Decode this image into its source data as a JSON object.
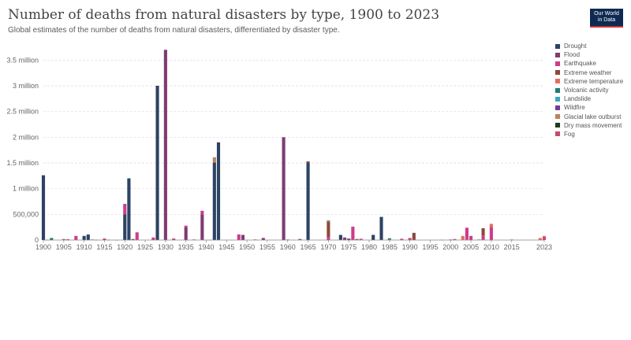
{
  "header": {
    "title": "Number of deaths from natural disasters by type, 1900 to 2023",
    "subtitle": "Global estimates of the number of deaths from natural disasters, differentiated by disaster type.",
    "logo_line1": "Our World",
    "logo_line2": "in Data"
  },
  "chart_data": {
    "type": "bar",
    "stacked": true,
    "xlim": [
      1900,
      2023
    ],
    "ylim": [
      0,
      3750000
    ],
    "yticks": [
      0,
      500000,
      1000000,
      1500000,
      2000000,
      2500000,
      3000000,
      3500000
    ],
    "ytick_labels": [
      "0",
      "500,000",
      "1 million",
      "1.5 million",
      "2 million",
      "2.5 million",
      "3 million",
      "3.5 million"
    ],
    "xticks": [
      1900,
      1905,
      1910,
      1915,
      1920,
      1925,
      1930,
      1935,
      1940,
      1945,
      1950,
      1955,
      1960,
      1965,
      1970,
      1975,
      1980,
      1985,
      1990,
      1995,
      2000,
      2005,
      2010,
      2015,
      2023
    ],
    "grid": "horizontal",
    "legend_position": "right",
    "series": [
      {
        "name": "Drought",
        "color": "#2c4364",
        "points": [
          [
            1900,
            1260000
          ],
          [
            1901,
            5000
          ],
          [
            1910,
            80000
          ],
          [
            1911,
            100000
          ],
          [
            1913,
            5000
          ],
          [
            1920,
            500000
          ],
          [
            1921,
            1200000
          ],
          [
            1928,
            3000000
          ],
          [
            1942,
            1500000
          ],
          [
            1943,
            1900000
          ],
          [
            1965,
            1500000
          ],
          [
            1973,
            100000
          ],
          [
            1983,
            450000
          ],
          [
            1981,
            100000
          ]
        ]
      },
      {
        "name": "Flood",
        "color": "#7d3c74",
        "points": [
          [
            1911,
            10000
          ],
          [
            1930,
            3700000
          ],
          [
            1935,
            250000
          ],
          [
            1939,
            500000
          ],
          [
            1949,
            100000
          ],
          [
            1954,
            40000
          ],
          [
            1959,
            2000000
          ],
          [
            1974,
            50000
          ],
          [
            1975,
            30000
          ],
          [
            1998,
            5000
          ],
          [
            2000,
            10000
          ],
          [
            2004,
            10000
          ],
          [
            2010,
            5000
          ]
        ]
      },
      {
        "name": "Earthquake",
        "color": "#cf3c8b",
        "points": [
          [
            1905,
            20000
          ],
          [
            1906,
            5000
          ],
          [
            1908,
            80000
          ],
          [
            1915,
            30000
          ],
          [
            1920,
            200000
          ],
          [
            1923,
            150000
          ],
          [
            1927,
            50000
          ],
          [
            1932,
            30000
          ],
          [
            1935,
            30000
          ],
          [
            1939,
            70000
          ],
          [
            1948,
            110000
          ],
          [
            1960,
            10000
          ],
          [
            1970,
            60000
          ],
          [
            1976,
            260000
          ],
          [
            1978,
            25000
          ],
          [
            1988,
            25000
          ],
          [
            1990,
            40000
          ],
          [
            2001,
            20000
          ],
          [
            2004,
            230000
          ],
          [
            2005,
            80000
          ],
          [
            2008,
            90000
          ],
          [
            2010,
            250000
          ],
          [
            2015,
            10000
          ],
          [
            2023,
            60000
          ]
        ]
      },
      {
        "name": "Extreme weather",
        "color": "#8b4a3a",
        "points": [
          [
            1906,
            10000
          ],
          [
            1912,
            10000
          ],
          [
            1922,
            20000
          ],
          [
            1937,
            10000
          ],
          [
            1942,
            10000
          ],
          [
            1963,
            20000
          ],
          [
            1965,
            30000
          ],
          [
            1970,
            300000
          ],
          [
            1977,
            20000
          ],
          [
            1985,
            10000
          ],
          [
            1991,
            140000
          ],
          [
            2007,
            10000
          ],
          [
            2008,
            140000
          ]
        ]
      },
      {
        "name": "Extreme temperature",
        "color": "#e56e5a",
        "points": [
          [
            2003,
            80000
          ],
          [
            2010,
            60000
          ],
          [
            2022,
            40000
          ],
          [
            2023,
            20000
          ]
        ]
      },
      {
        "name": "Volcanic activity",
        "color": "#207b6e",
        "points": [
          [
            1902,
            40000
          ],
          [
            1985,
            25000
          ]
        ]
      },
      {
        "name": "Landslide",
        "color": "#38aaba",
        "points": [
          [
            1920,
            5000
          ],
          [
            1970,
            5000
          ]
        ]
      },
      {
        "name": "Wildfire",
        "color": "#6d3e91",
        "points": [
          [
            1918,
            2000
          ]
        ]
      },
      {
        "name": "Glacial lake outburst",
        "color": "#b8845e",
        "points": [
          [
            1941,
            5000
          ],
          [
            1942,
            100000
          ],
          [
            1970,
            20000
          ]
        ]
      },
      {
        "name": "Dry mass movement",
        "color": "#1f3a1f",
        "points": [
          [
            1916,
            5000
          ]
        ]
      },
      {
        "name": "Fog",
        "color": "#c15065",
        "points": [
          [
            1952,
            12000
          ]
        ]
      }
    ]
  }
}
